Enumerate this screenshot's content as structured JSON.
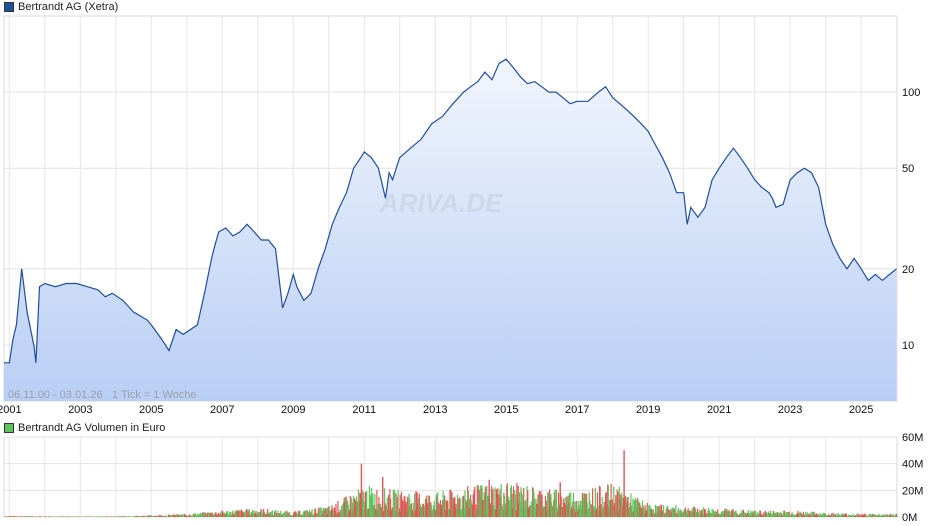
{
  "legend": {
    "price": "Bertrandt AG (Xetra)",
    "volume": "Bertrandt AG Volumen in Euro",
    "price_color": "#1f4e9c",
    "volume_color": "#5cc45c"
  },
  "info": {
    "range": "06.11.00 - 03.01.26",
    "tick": "1 Tick = 1 Woche"
  },
  "watermark": "ARIVA.DE",
  "chart_data": [
    {
      "type": "area",
      "scale": "log",
      "ylim": [
        6,
        200
      ],
      "xlim": [
        2000.85,
        2026.01
      ],
      "y_ticks": [
        10,
        20,
        50,
        100
      ],
      "x_ticks": [
        "2001",
        "2003",
        "2005",
        "2007",
        "2009",
        "2011",
        "2013",
        "2015",
        "2017",
        "2019",
        "2021",
        "2023",
        "2025"
      ],
      "grid": true,
      "line_color": "#1f4e9c",
      "x": [
        2000.85,
        2001.0,
        2001.1,
        2001.2,
        2001.35,
        2001.5,
        2001.7,
        2001.75,
        2001.85,
        2002.0,
        2002.3,
        2002.6,
        2002.9,
        2003.2,
        2003.5,
        2003.7,
        2003.9,
        2004.2,
        2004.5,
        2004.7,
        2004.9,
        2005.1,
        2005.3,
        2005.5,
        2005.7,
        2005.9,
        2006.1,
        2006.3,
        2006.5,
        2006.7,
        2006.8,
        2006.9,
        2007.1,
        2007.3,
        2007.5,
        2007.7,
        2007.9,
        2008.1,
        2008.3,
        2008.5,
        2008.7,
        2008.85,
        2009.0,
        2009.1,
        2009.3,
        2009.5,
        2009.7,
        2009.9,
        2010.1,
        2010.3,
        2010.5,
        2010.7,
        2010.9,
        2011.0,
        2011.2,
        2011.4,
        2011.6,
        2011.7,
        2011.8,
        2011.9,
        2012.0,
        2012.3,
        2012.6,
        2012.9,
        2013.2,
        2013.5,
        2013.8,
        2014.0,
        2014.2,
        2014.4,
        2014.6,
        2014.8,
        2015.0,
        2015.2,
        2015.4,
        2015.6,
        2015.8,
        2016.0,
        2016.2,
        2016.4,
        2016.6,
        2016.8,
        2017.0,
        2017.3,
        2017.6,
        2017.8,
        2018.0,
        2018.2,
        2018.4,
        2018.6,
        2018.8,
        2019.0,
        2019.2,
        2019.4,
        2019.6,
        2019.8,
        2020.0,
        2020.1,
        2020.2,
        2020.4,
        2020.6,
        2020.8,
        2021.0,
        2021.2,
        2021.4,
        2021.6,
        2021.8,
        2022.0,
        2022.2,
        2022.4,
        2022.5,
        2022.6,
        2022.8,
        2023.0,
        2023.2,
        2023.4,
        2023.6,
        2023.8,
        2024.0,
        2024.2,
        2024.4,
        2024.6,
        2024.8,
        2025.0,
        2025.2,
        2025.4,
        2025.6,
        2025.8,
        2026.0
      ],
      "y": [
        8.5,
        8.5,
        10.5,
        12,
        20,
        13.5,
        9.8,
        8.5,
        17,
        17.5,
        17,
        17.5,
        17.5,
        17,
        16.5,
        15.5,
        16,
        15,
        13.5,
        13,
        12.5,
        11.5,
        10.5,
        9.5,
        11.5,
        11,
        11.5,
        12,
        16,
        22,
        25,
        28,
        29,
        27,
        28,
        30,
        28,
        26,
        26,
        24,
        14,
        16,
        19,
        17,
        15,
        16,
        20,
        24,
        30,
        35,
        40,
        50,
        55,
        58,
        55,
        50,
        38,
        48,
        45,
        50,
        55,
        60,
        65,
        75,
        80,
        90,
        100,
        105,
        110,
        120,
        112,
        130,
        135,
        125,
        115,
        108,
        110,
        105,
        100,
        100,
        95,
        90,
        92,
        92,
        100,
        105,
        95,
        90,
        85,
        80,
        75,
        70,
        62,
        55,
        48,
        40,
        40,
        30,
        35,
        32,
        35,
        45,
        50,
        55,
        60,
        55,
        50,
        45,
        42,
        40,
        38,
        35,
        36,
        45,
        48,
        50,
        48,
        42,
        30,
        25,
        22,
        20,
        22,
        20,
        18,
        19,
        18,
        19,
        20
      ]
    },
    {
      "type": "bar",
      "ylim": [
        0,
        60
      ],
      "y_ticks": [
        "0M",
        "20M",
        "40M",
        "60M"
      ],
      "x_ticks": [
        "2001",
        "2003",
        "2005",
        "2007",
        "2009",
        "2011",
        "2013",
        "2015",
        "2017",
        "2019",
        "2021",
        "2023",
        "2025"
      ],
      "grid": true,
      "up_color": "#5cc45c",
      "down_color": "#e05555",
      "x": [
        2001,
        2002,
        2003,
        2004,
        2005,
        2006,
        2007,
        2008,
        2009,
        2010,
        2011,
        2012,
        2013,
        2014,
        2015,
        2016,
        2017,
        2018,
        2019,
        2020,
        2021,
        2022,
        2023,
        2024,
        2025
      ],
      "values": [
        0.5,
        0.4,
        0.3,
        0.4,
        0.8,
        1.5,
        3,
        4,
        2.5,
        5,
        14,
        12,
        11,
        14,
        16,
        13,
        12,
        15,
        6,
        5,
        4,
        3,
        3,
        2,
        1.5
      ],
      "peak_values": [
        [
          2010.9,
          40
        ],
        [
          2018.3,
          50
        ],
        [
          2011.5,
          30
        ],
        [
          2014.5,
          28
        ],
        [
          2016.5,
          26
        ]
      ]
    }
  ]
}
